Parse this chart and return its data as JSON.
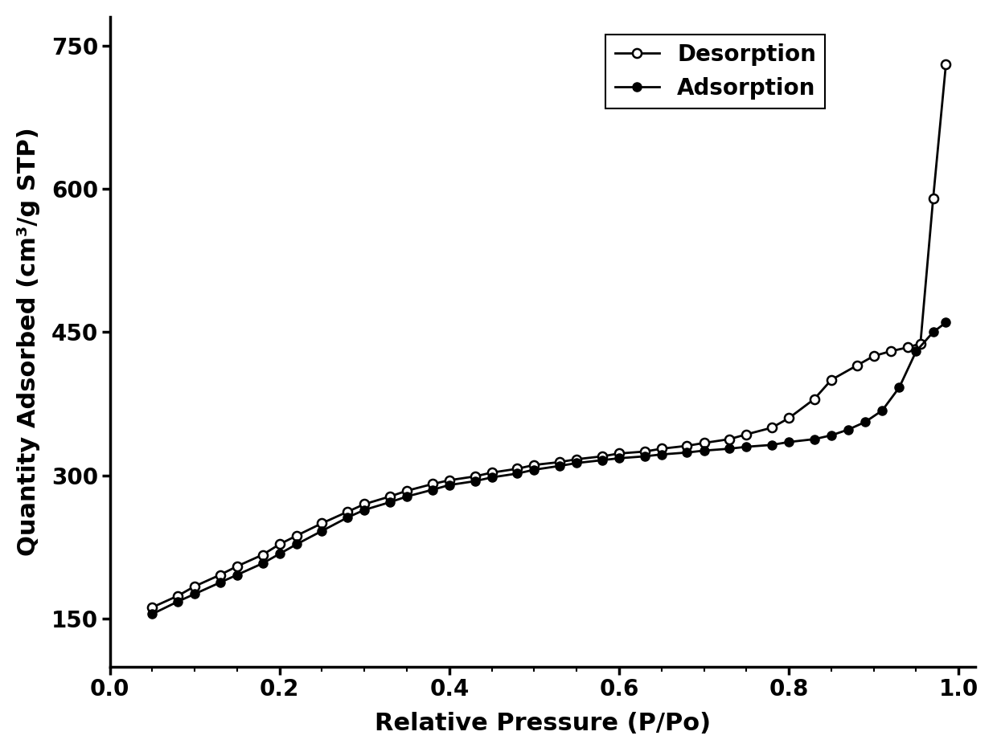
{
  "adsorption_x": [
    0.05,
    0.08,
    0.1,
    0.13,
    0.15,
    0.18,
    0.2,
    0.22,
    0.25,
    0.28,
    0.3,
    0.33,
    0.35,
    0.38,
    0.4,
    0.43,
    0.45,
    0.48,
    0.5,
    0.53,
    0.55,
    0.58,
    0.6,
    0.63,
    0.65,
    0.68,
    0.7,
    0.73,
    0.75,
    0.78,
    0.8,
    0.83,
    0.85,
    0.87,
    0.89,
    0.91,
    0.93,
    0.95,
    0.97,
    0.985
  ],
  "adsorption_y": [
    155,
    168,
    176,
    188,
    196,
    208,
    218,
    228,
    242,
    256,
    264,
    272,
    278,
    285,
    290,
    294,
    298,
    302,
    306,
    310,
    313,
    316,
    318,
    320,
    322,
    324,
    326,
    328,
    330,
    332,
    335,
    338,
    342,
    348,
    356,
    368,
    392,
    430,
    450,
    460
  ],
  "desorption_x": [
    0.985,
    0.97,
    0.955,
    0.94,
    0.92,
    0.9,
    0.88,
    0.85,
    0.83,
    0.8,
    0.78,
    0.75,
    0.73,
    0.7,
    0.68,
    0.65,
    0.63,
    0.6,
    0.58,
    0.55,
    0.53,
    0.5,
    0.48,
    0.45,
    0.43,
    0.4,
    0.38,
    0.35,
    0.33,
    0.3,
    0.28,
    0.25,
    0.22,
    0.2,
    0.18,
    0.15,
    0.13,
    0.1,
    0.08,
    0.05
  ],
  "desorption_y": [
    730,
    590,
    438,
    434,
    430,
    425,
    415,
    400,
    380,
    360,
    350,
    343,
    338,
    334,
    331,
    328,
    325,
    323,
    320,
    317,
    314,
    311,
    307,
    303,
    299,
    295,
    291,
    284,
    278,
    270,
    262,
    250,
    237,
    228,
    217,
    205,
    196,
    184,
    174,
    162
  ],
  "xlabel": "Relative Pressure (P/Po)",
  "ylabel": "Quantity Adsorbed (cm³/g STP)",
  "xlim": [
    0.0,
    1.02
  ],
  "ylim": [
    100,
    780
  ],
  "xticks": [
    0.0,
    0.2,
    0.4,
    0.6,
    0.8,
    1.0
  ],
  "yticks": [
    150,
    300,
    450,
    600,
    750
  ],
  "legend_adsorption": "Adsorption",
  "legend_desorption": "Desorption",
  "line_color": "#000000",
  "background_color": "#ffffff",
  "marker_size": 8,
  "line_width": 2.0,
  "font_size_labels": 22,
  "font_size_ticks": 20,
  "font_size_legend": 20
}
